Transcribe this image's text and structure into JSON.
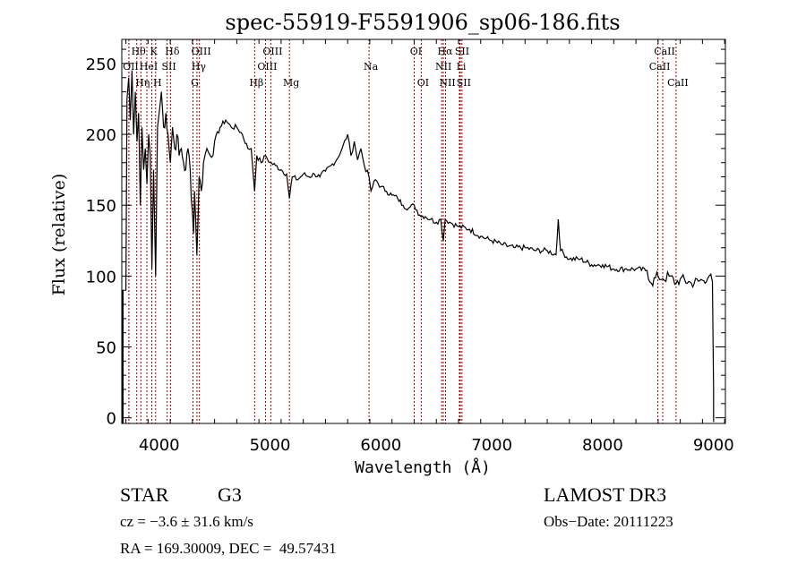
{
  "chart_data": {
    "type": "line",
    "title": "spec-55919-F5591906_sp06-186.fits",
    "xlabel": "Wavelength (Å)",
    "ylabel": "Flux (relative)",
    "xlim": [
      3663,
      9107
    ],
    "ylim": [
      -4,
      267
    ],
    "xticks": [
      4000,
      5000,
      6000,
      7000,
      8000,
      9000
    ],
    "xtick_labels": [
      "4000",
      "5000",
      "6000",
      "7000",
      "8000",
      "9000"
    ],
    "yticks": [
      0,
      50,
      100,
      150,
      200,
      250
    ],
    "ytick_labels": [
      "0",
      "50",
      "100",
      "150",
      "200",
      "250"
    ],
    "grid": false,
    "series": [
      {
        "name": "spectrum",
        "x": [
          3700,
          3710,
          3725,
          3740,
          3755,
          3770,
          3785,
          3800,
          3815,
          3830,
          3845,
          3860,
          3875,
          3890,
          3905,
          3920,
          3934,
          3950,
          3968,
          3985,
          4000,
          4020,
          4040,
          4060,
          4080,
          4101,
          4120,
          4140,
          4160,
          4180,
          4200,
          4220,
          4240,
          4260,
          4280,
          4300,
          4310,
          4320,
          4340,
          4360,
          4380,
          4400,
          4430,
          4460,
          4500,
          4550,
          4600,
          4650,
          4700,
          4750,
          4800,
          4830,
          4861,
          4880,
          4920,
          4960,
          5000,
          5050,
          5100,
          5150,
          5175,
          5200,
          5250,
          5300,
          5350,
          5400,
          5450,
          5500,
          5550,
          5600,
          5650,
          5700,
          5730,
          5760,
          5790,
          5820,
          5850,
          5893,
          5910,
          5950,
          6000,
          6050,
          6100,
          6150,
          6200,
          6250,
          6300,
          6350,
          6400,
          6450,
          6500,
          6540,
          6563,
          6580,
          6620,
          6700,
          6800,
          6900,
          7000,
          7100,
          7200,
          7300,
          7400,
          7500,
          7580,
          7600,
          7620,
          7700,
          7800,
          7900,
          8000,
          8100,
          8200,
          8300,
          8400,
          8440,
          8500,
          8542,
          8600,
          8662,
          8700,
          8800,
          8900,
          8960,
          8990,
          9000
        ],
        "y": [
          90,
          225,
          240,
          210,
          245,
          200,
          230,
          195,
          215,
          150,
          205,
          175,
          190,
          165,
          200,
          185,
          105,
          175,
          100,
          205,
          215,
          230,
          205,
          215,
          200,
          180,
          205,
          190,
          200,
          185,
          190,
          180,
          175,
          190,
          175,
          145,
          130,
          160,
          115,
          170,
          160,
          180,
          190,
          185,
          195,
          205,
          210,
          205,
          205,
          200,
          190,
          190,
          160,
          185,
          180,
          185,
          180,
          178,
          175,
          172,
          155,
          170,
          168,
          172,
          170,
          172,
          170,
          174,
          178,
          182,
          190,
          200,
          185,
          195,
          182,
          190,
          178,
          170,
          160,
          168,
          163,
          160,
          157,
          155,
          150,
          148,
          150,
          143,
          142,
          140,
          138,
          140,
          125,
          140,
          138,
          135,
          133,
          128,
          125,
          122,
          120,
          120,
          118,
          118,
          115,
          140,
          118,
          112,
          112,
          108,
          108,
          105,
          105,
          105,
          104,
          95,
          100,
          98,
          100,
          95,
          98,
          95,
          97,
          100,
          96,
          20
        ]
      }
    ],
    "line_markers": [
      {
        "label": "OII",
        "wavelength": 3727,
        "row": 2
      },
      {
        "label": "Hθ",
        "wavelength": 3798,
        "row": 1
      },
      {
        "label": "OII",
        "wavelength": 3727,
        "row": 2,
        "hidden_label": true
      },
      {
        "label": "Hη",
        "wavelength": 3835,
        "row": 3
      },
      {
        "label": "HeI",
        "wavelength": 3889,
        "row": 2
      },
      {
        "label": "K",
        "wavelength": 3934,
        "row": 1
      },
      {
        "label": "H",
        "wavelength": 3968,
        "row": 3
      },
      {
        "label": "SII",
        "wavelength": 4072,
        "row": 2
      },
      {
        "label": "Hδ",
        "wavelength": 4102,
        "row": 1
      },
      {
        "label": "G",
        "wavelength": 4305,
        "row": 3
      },
      {
        "label": "OIII",
        "wavelength": 4363,
        "row": 1
      },
      {
        "label": "Hγ",
        "wavelength": 4341,
        "row": 2
      },
      {
        "label": "Hβ",
        "wavelength": 4861,
        "row": 3
      },
      {
        "label": "OIII",
        "wavelength": 4959,
        "row": 2
      },
      {
        "label": "OIII",
        "wavelength": 5007,
        "row": 1
      },
      {
        "label": "Mg",
        "wavelength": 5175,
        "row": 3
      },
      {
        "label": "Na",
        "wavelength": 5893,
        "row": 2
      },
      {
        "label": "OI",
        "wavelength": 6300,
        "row": 1
      },
      {
        "label": "OI",
        "wavelength": 6364,
        "row": 3
      },
      {
        "label": "NII",
        "wavelength": 6548,
        "row": 2
      },
      {
        "label": "Hα",
        "wavelength": 6563,
        "row": 1
      },
      {
        "label": "NII",
        "wavelength": 6583,
        "row": 3
      },
      {
        "label": "Li",
        "wavelength": 6708,
        "row": 2
      },
      {
        "label": "SII",
        "wavelength": 6716,
        "row": 1
      },
      {
        "label": "SII",
        "wavelength": 6731,
        "row": 3
      },
      {
        "label": "CaII",
        "wavelength": 8498,
        "row": 2
      },
      {
        "label": "CaII",
        "wavelength": 8542,
        "row": 1
      },
      {
        "label": "CaII",
        "wavelength": 8662,
        "row": 3
      }
    ],
    "colors": {
      "spectrum": "#000000",
      "markers": "#a00000",
      "axes": "#000000"
    }
  },
  "info": {
    "object_class": "STAR",
    "subclass": "G3",
    "survey": "LAMOST DR3",
    "redshift": "cz = −3.6 ± 31.6 km/s",
    "obs_date": "Obs−Date: 20111223",
    "coords": "RA = 169.30009, DEC =  49.57431"
  }
}
